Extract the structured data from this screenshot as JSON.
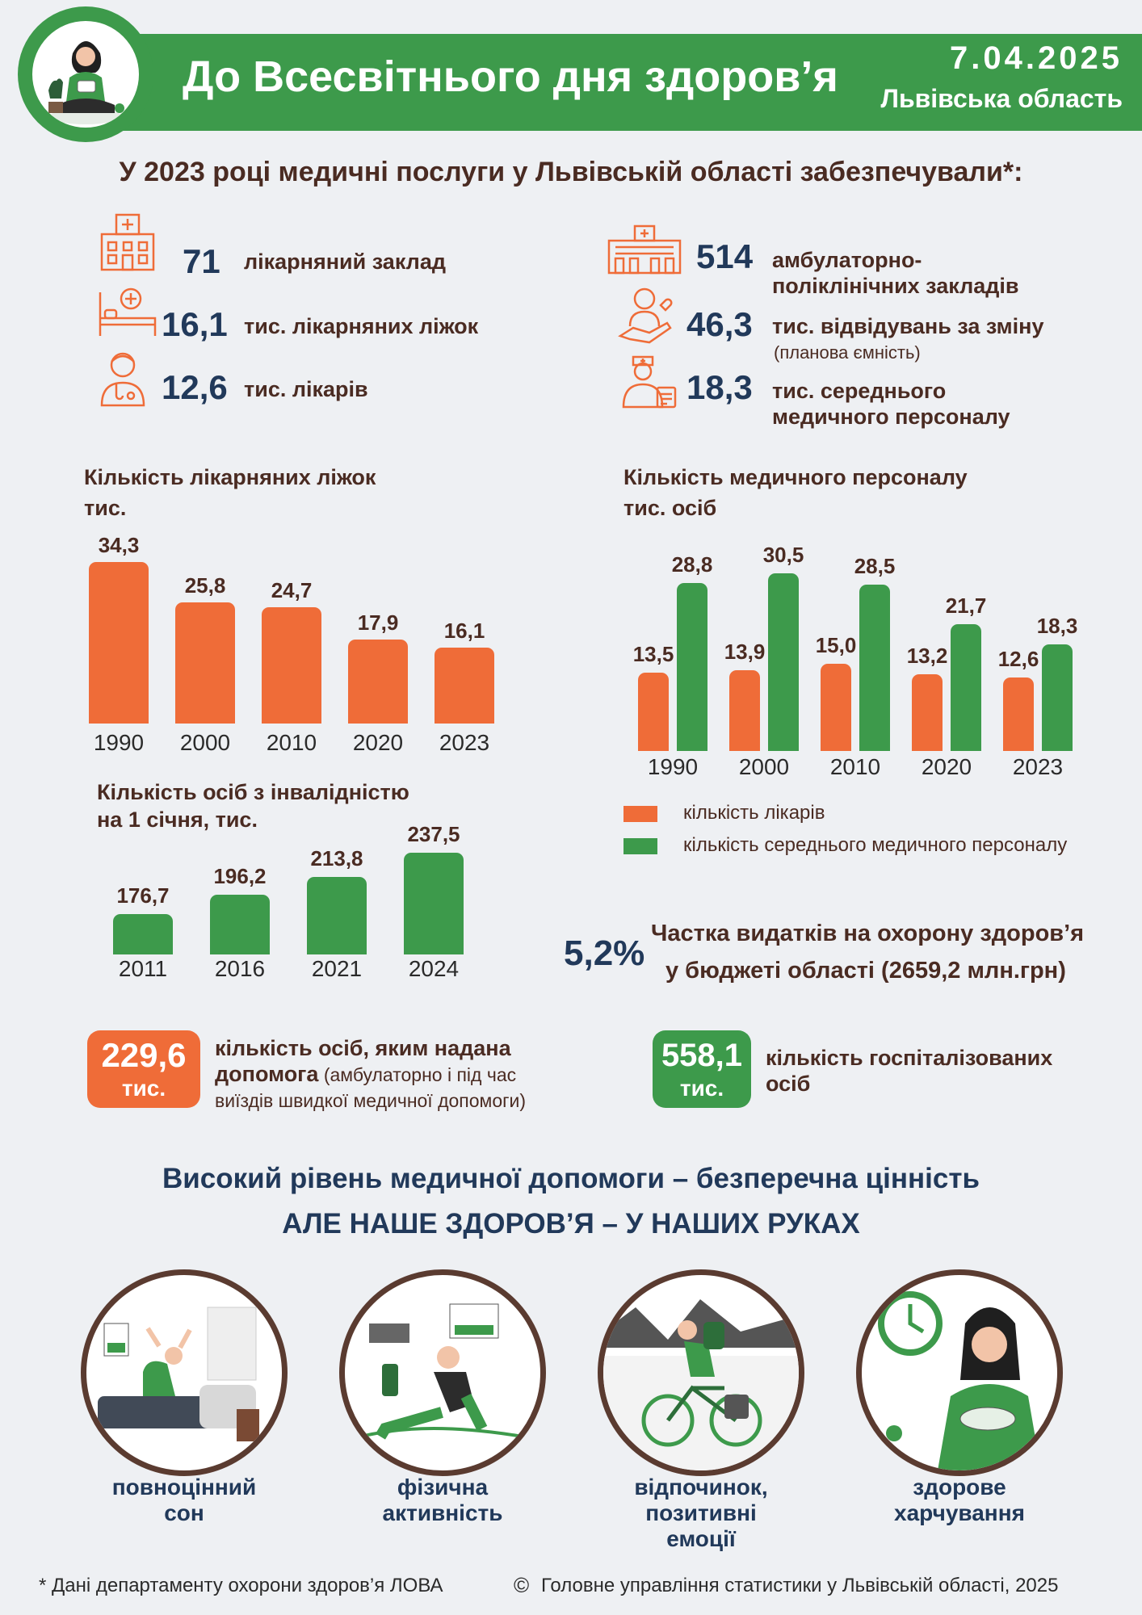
{
  "header": {
    "title": "До Всесвітнього дня здоров’я",
    "date": "7.04.2025",
    "region": "Львівська область"
  },
  "subtitle": "У 2023 році медичні послуги у Львівській області забезпечували*:",
  "stats_left": [
    {
      "icon": "hospital-building-icon",
      "value": "71",
      "label": "лікарняний заклад"
    },
    {
      "icon": "hospital-bed-icon",
      "value": "16,1",
      "label": "тис. лікарняних ліжок"
    },
    {
      "icon": "doctor-icon",
      "value": "12,6",
      "label": "тис. лікарів"
    }
  ],
  "stats_right": [
    {
      "icon": "clinic-building-icon",
      "value": "514",
      "label_1": "амбулаторно-",
      "label_2": "поліклінічних закладів"
    },
    {
      "icon": "patient-care-icon",
      "value": "46,3",
      "label_1": "тис. відвідувань за зміну",
      "note": "(планова ємність)"
    },
    {
      "icon": "nurse-icon",
      "value": "18,3",
      "label_1": "тис. середнього",
      "label_2": "медичного персоналу"
    }
  ],
  "chart_beds_title": {
    "line1": "Кількість лікарняних ліжок",
    "line2": "тис."
  },
  "chart_staff_title": {
    "line1": "Кількість медичного персоналу",
    "line2": "тис. осіб"
  },
  "chart_disab_title": {
    "line1": "Кількість осіб з інвалідністю",
    "line2": "на 1 січня, тис."
  },
  "chart_data": [
    {
      "type": "bar",
      "title": "Кількість лікарняних ліжок",
      "ylabel": "тис.",
      "categories": [
        "1990",
        "2000",
        "2010",
        "2020",
        "2023"
      ],
      "series": [
        {
          "values": [
            34.3,
            25.8,
            24.7,
            17.9,
            16.1
          ]
        }
      ],
      "labels": [
        "34,3",
        "25,8",
        "24,7",
        "17,9",
        "16,1"
      ],
      "color": "#ef6c38"
    },
    {
      "type": "bar",
      "title": "Кількість медичного персоналу",
      "ylabel": "тис. осіб",
      "categories": [
        "1990",
        "2000",
        "2010",
        "2020",
        "2023"
      ],
      "series": [
        {
          "name": "кількість лікарів",
          "values": [
            13.5,
            13.9,
            15.0,
            13.2,
            12.6
          ],
          "labels": [
            "13,5",
            "13,9",
            "15,0",
            "13,2",
            "12,6"
          ],
          "color": "#ef6c38"
        },
        {
          "name": "кількість середнього медичного персоналу",
          "values": [
            28.8,
            30.5,
            28.5,
            21.7,
            18.3
          ],
          "labels": [
            "28,8",
            "30,5",
            "28,5",
            "21,7",
            "18,3"
          ],
          "color": "#3d9a4b"
        }
      ],
      "legend": "bottom-left"
    },
    {
      "type": "bar",
      "title": "Кількість осіб з інвалідністю на 1 січня",
      "ylabel": "тис.",
      "categories": [
        "2011",
        "2016",
        "2021",
        "2024"
      ],
      "series": [
        {
          "values": [
            176.7,
            196.2,
            213.8,
            237.5
          ]
        }
      ],
      "labels": [
        "176,7",
        "196,2",
        "213,8",
        "237,5"
      ],
      "color": "#3d9a4b"
    }
  ],
  "share": {
    "value": "5,2%",
    "line1": "Частка видатків на охорону здоров’я",
    "line2": "у бюджеті області (2659,2 млн.грн)"
  },
  "badge_left": {
    "value": "229,6",
    "unit": "тис.",
    "text_bold_1": "кількість осіб, яким надана",
    "text_bold_2": "допомога",
    "text_normal_1": " (амбулаторно і під час",
    "text_normal_2": "виїздів швидкої медичної допомоги)"
  },
  "badge_right": {
    "value": "558,1",
    "unit": "тис.",
    "text_1": "кількість госпіталізованих",
    "text_2": "осіб"
  },
  "slogan": {
    "line1": "Високий рівень медичної допомоги – безперечна цінність",
    "line2": "АЛЕ НАШЕ ЗДОРОВ’Я – У НАШИХ РУКАХ"
  },
  "habits": [
    {
      "icon": "sleep-illustration",
      "line1": "повноцінний",
      "line2": "сон",
      "line3": ""
    },
    {
      "icon": "exercise-illustration",
      "line1": "фізична",
      "line2": "активність",
      "line3": ""
    },
    {
      "icon": "cycling-illustration",
      "line1": "відпочинок,",
      "line2": "позитивні",
      "line3": "емоції"
    },
    {
      "icon": "eating-illustration",
      "line1": "здорове",
      "line2": "харчування",
      "line3": ""
    }
  ],
  "footer": {
    "left": "* Дані департаменту охорони здоров’я ЛОВА",
    "copyright_symbol": "©",
    "right": "Головне управління статистики у Львівській області, 2025"
  },
  "colors": {
    "green": "#3d9a4b",
    "orange": "#ef6c38",
    "navy": "#21395a",
    "brown": "#4a2b22",
    "background": "#eef0f3"
  }
}
